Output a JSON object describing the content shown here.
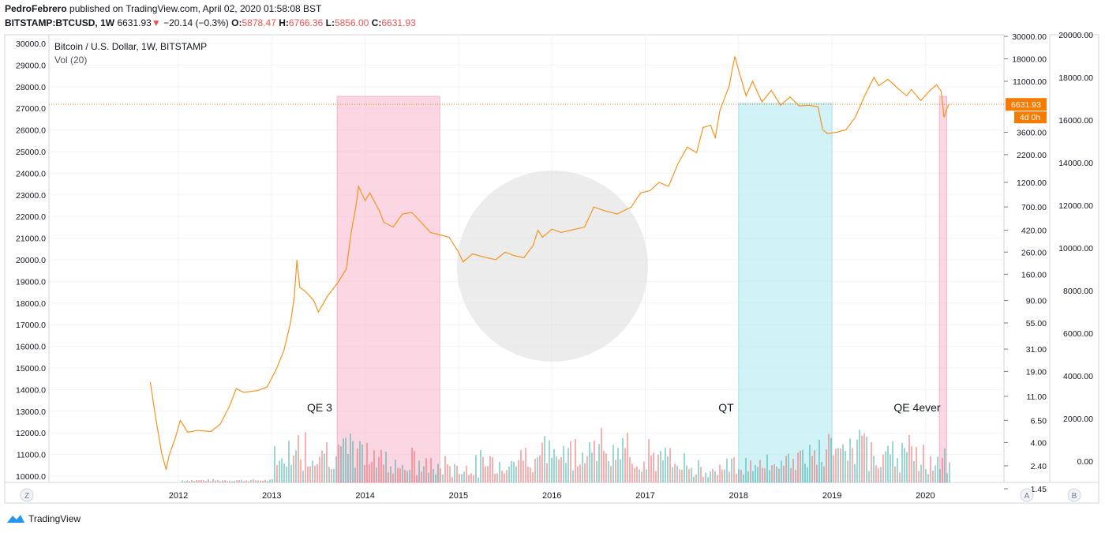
{
  "header": {
    "author": "PedroFebrero",
    "published_text": "published on TradingView.com, April 02, 2020 01:58:08 BST",
    "symbol": "BITSTAMP:BTCUSD, 1W",
    "last": "6631.93",
    "down_arrow": "▼",
    "change": "−20.14 (−0.3%)",
    "o_label": "O:",
    "o_value": "5878.47",
    "h_label": "H:",
    "h_value": "6766.36",
    "l_label": "L:",
    "l_value": "5856.00",
    "c_label": "C:",
    "c_value": "6631.93"
  },
  "footer": {
    "brand": "TradingView"
  },
  "colors": {
    "price_line": "#f7931a",
    "qe_band": "#f8bbd0",
    "qt_band": "#b2ebf2",
    "up_volume": "#26a69a",
    "down_volume": "#ef5350",
    "vol_ma": "#f7c15a",
    "last_tag": "#f57c00"
  },
  "chart_data": {
    "type": "line",
    "title": "Bitcoin / U.S. Dollar, 1W, BITSTAMP",
    "indicator": "Vol (20)",
    "x_ticks": [
      "2012",
      "2013",
      "2014",
      "2015",
      "2016",
      "2017",
      "2018",
      "2019",
      "2020"
    ],
    "left_axis_ticks": [
      "30000.0",
      "29000.0",
      "28000.0",
      "27000.0",
      "26000.0",
      "25000.0",
      "24000.0",
      "23000.0",
      "22000.0",
      "21000.0",
      "20000.0",
      "19000.0",
      "18000.0",
      "17000.0",
      "16000.0",
      "15000.0",
      "14000.0",
      "13000.0",
      "12000.0",
      "11000.0",
      "10000.0"
    ],
    "log_axis_ticks": [
      "30000.00",
      "18000.00",
      "11000.00",
      "6631.93",
      "3600.00",
      "2200.00",
      "1200.00",
      "700.00",
      "420.00",
      "260.00",
      "160.00",
      "90.00",
      "55.00",
      "31.00",
      "19.00",
      "11.00",
      "6.50",
      "4.00",
      "2.40",
      "1.45"
    ],
    "right_axis_ticks": [
      "20000.00",
      "18000.00",
      "16000.00",
      "14000.00",
      "12000.00",
      "10000.00",
      "8000.00",
      "6000.00",
      "4000.00",
      "2000.00",
      "0.00"
    ],
    "last_price_label": "6631.93",
    "countdown_label": "4d 0h",
    "annotations": [
      "QE 3",
      "QT",
      "QE 4ever"
    ],
    "bands": [
      {
        "label": "QE 3",
        "start": 2013.7,
        "end": 2014.8,
        "kind": "qe"
      },
      {
        "label": "QT",
        "start": 2018.0,
        "end": 2019.0,
        "kind": "qt"
      },
      {
        "label": "QE 4ever",
        "start": 2020.15,
        "end": 2020.23,
        "kind": "qe"
      }
    ],
    "price_series": [
      [
        2011.7,
        15.0
      ],
      [
        2011.75,
        7.5
      ],
      [
        2011.82,
        3.2
      ],
      [
        2011.87,
        2.2
      ],
      [
        2011.9,
        3.0
      ],
      [
        2011.97,
        4.5
      ],
      [
        2012.02,
        6.5
      ],
      [
        2012.1,
        5.0
      ],
      [
        2012.2,
        5.2
      ],
      [
        2012.35,
        5.1
      ],
      [
        2012.45,
        6.0
      ],
      [
        2012.55,
        9.0
      ],
      [
        2012.62,
        13.0
      ],
      [
        2012.7,
        12.0
      ],
      [
        2012.85,
        12.5
      ],
      [
        2012.95,
        13.5
      ],
      [
        2013.05,
        20.0
      ],
      [
        2013.13,
        30.0
      ],
      [
        2013.2,
        55.0
      ],
      [
        2013.24,
        95.0
      ],
      [
        2013.27,
        220.0
      ],
      [
        2013.3,
        120.0
      ],
      [
        2013.36,
        110.0
      ],
      [
        2013.45,
        90.0
      ],
      [
        2013.5,
        70.0
      ],
      [
        2013.6,
        100.0
      ],
      [
        2013.7,
        130.0
      ],
      [
        2013.8,
        180.0
      ],
      [
        2013.85,
        400.0
      ],
      [
        2013.9,
        700.0
      ],
      [
        2013.93,
        1100.0
      ],
      [
        2014.0,
        800.0
      ],
      [
        2014.05,
        950.0
      ],
      [
        2014.15,
        650.0
      ],
      [
        2014.2,
        500.0
      ],
      [
        2014.3,
        450.0
      ],
      [
        2014.4,
        600.0
      ],
      [
        2014.5,
        620.0
      ],
      [
        2014.6,
        500.0
      ],
      [
        2014.7,
        400.0
      ],
      [
        2014.8,
        380.0
      ],
      [
        2014.9,
        360.0
      ],
      [
        2015.0,
        260.0
      ],
      [
        2015.05,
        210.0
      ],
      [
        2015.15,
        250.0
      ],
      [
        2015.3,
        230.0
      ],
      [
        2015.4,
        220.0
      ],
      [
        2015.5,
        260.0
      ],
      [
        2015.6,
        240.0
      ],
      [
        2015.7,
        230.0
      ],
      [
        2015.8,
        300.0
      ],
      [
        2015.85,
        420.0
      ],
      [
        2015.9,
        360.0
      ],
      [
        2016.0,
        430.0
      ],
      [
        2016.1,
        400.0
      ],
      [
        2016.2,
        420.0
      ],
      [
        2016.35,
        450.0
      ],
      [
        2016.45,
        700.0
      ],
      [
        2016.55,
        650.0
      ],
      [
        2016.7,
        600.0
      ],
      [
        2016.85,
        700.0
      ],
      [
        2016.95,
        950.0
      ],
      [
        2017.05,
        1000.0
      ],
      [
        2017.15,
        1200.0
      ],
      [
        2017.25,
        1100.0
      ],
      [
        2017.35,
        1800.0
      ],
      [
        2017.45,
        2600.0
      ],
      [
        2017.55,
        2300.0
      ],
      [
        2017.62,
        4000.0
      ],
      [
        2017.7,
        4200.0
      ],
      [
        2017.75,
        3200.0
      ],
      [
        2017.8,
        5800.0
      ],
      [
        2017.9,
        10000.0
      ],
      [
        2017.93,
        14000.0
      ],
      [
        2017.96,
        19000.0
      ],
      [
        2018.0,
        14000.0
      ],
      [
        2018.08,
        8000.0
      ],
      [
        2018.15,
        11000.0
      ],
      [
        2018.25,
        7000.0
      ],
      [
        2018.35,
        9000.0
      ],
      [
        2018.45,
        6500.0
      ],
      [
        2018.55,
        7800.0
      ],
      [
        2018.65,
        6400.0
      ],
      [
        2018.75,
        6500.0
      ],
      [
        2018.85,
        6300.0
      ],
      [
        2018.9,
        3800.0
      ],
      [
        2018.95,
        3500.0
      ],
      [
        2019.05,
        3600.0
      ],
      [
        2019.15,
        3800.0
      ],
      [
        2019.25,
        5000.0
      ],
      [
        2019.35,
        8000.0
      ],
      [
        2019.45,
        12000.0
      ],
      [
        2019.5,
        10000.0
      ],
      [
        2019.6,
        11500.0
      ],
      [
        2019.7,
        9500.0
      ],
      [
        2019.8,
        8000.0
      ],
      [
        2019.85,
        9200.0
      ],
      [
        2019.95,
        7200.0
      ],
      [
        2020.05,
        9000.0
      ],
      [
        2020.12,
        10200.0
      ],
      [
        2020.17,
        8800.0
      ],
      [
        2020.2,
        5000.0
      ],
      [
        2020.23,
        6000.0
      ],
      [
        2020.25,
        6631.93
      ]
    ]
  }
}
